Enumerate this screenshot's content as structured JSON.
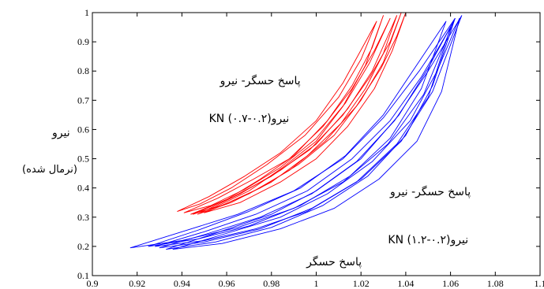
{
  "chart_data": {
    "type": "line",
    "title": "",
    "xlabel": "",
    "ylabel": "نیرو",
    "ylabel_sub": "(نرمال شده)",
    "xlim": [
      0.9,
      1.1
    ],
    "ylim": [
      0.1,
      1.0
    ],
    "x_ticks": [
      0.9,
      0.92,
      0.94,
      0.96,
      0.98,
      1.0,
      1.02,
      1.04,
      1.06,
      1.08,
      1.1
    ],
    "x_tick_labels": [
      "0.9",
      "0.92",
      "0.94",
      "0.96",
      "0.98",
      "1",
      "1.02",
      "1.04",
      "1.06",
      "1.08",
      "1.1"
    ],
    "y_ticks": [
      0.1,
      0.2,
      0.3,
      0.4,
      0.5,
      0.6,
      0.7,
      0.8,
      0.9,
      1.0
    ],
    "y_tick_labels": [
      "0.1",
      "0.2",
      "0.3",
      "0.4",
      "0.5",
      "0.6",
      "0.7",
      "0.8",
      "0.9",
      "1"
    ],
    "grid": false,
    "colors": {
      "red_series": "#ff0000",
      "blue_series": "#0000ff",
      "axis": "#000000"
    },
    "series": [
      {
        "color": "#ff0000",
        "loops": [
          {
            "lower": [
              [
                0.945,
                0.31
              ],
              [
                0.955,
                0.335
              ],
              [
                0.97,
                0.39
              ],
              [
                0.985,
                0.47
              ],
              [
                1.0,
                0.56
              ],
              [
                1.012,
                0.68
              ],
              [
                1.022,
                0.82
              ],
              [
                1.03,
                0.99
              ]
            ],
            "upper": [
              [
                0.945,
                0.31
              ],
              [
                0.96,
                0.36
              ],
              [
                0.975,
                0.43
              ],
              [
                0.99,
                0.51
              ],
              [
                1.005,
                0.63
              ],
              [
                1.016,
                0.75
              ],
              [
                1.025,
                0.88
              ],
              [
                1.03,
                0.99
              ]
            ]
          },
          {
            "lower": [
              [
                0.938,
                0.32
              ],
              [
                0.948,
                0.345
              ],
              [
                0.962,
                0.4
              ],
              [
                0.978,
                0.48
              ],
              [
                0.995,
                0.58
              ],
              [
                1.01,
                0.71
              ],
              [
                1.02,
                0.84
              ],
              [
                1.027,
                0.97
              ]
            ],
            "upper": [
              [
                0.938,
                0.32
              ],
              [
                0.952,
                0.37
              ],
              [
                0.968,
                0.44
              ],
              [
                0.984,
                0.52
              ],
              [
                1.0,
                0.63
              ],
              [
                1.012,
                0.76
              ],
              [
                1.022,
                0.9
              ],
              [
                1.027,
                0.97
              ]
            ]
          },
          {
            "lower": [
              [
                0.944,
                0.31
              ],
              [
                0.958,
                0.34
              ],
              [
                0.975,
                0.4
              ],
              [
                0.992,
                0.48
              ],
              [
                1.008,
                0.58
              ],
              [
                1.02,
                0.7
              ],
              [
                1.03,
                0.83
              ],
              [
                1.038,
                1.0
              ]
            ],
            "upper": [
              [
                0.944,
                0.31
              ],
              [
                0.963,
                0.37
              ],
              [
                0.98,
                0.44
              ],
              [
                0.997,
                0.53
              ],
              [
                1.012,
                0.65
              ],
              [
                1.024,
                0.78
              ],
              [
                1.033,
                0.9
              ],
              [
                1.038,
                1.0
              ]
            ]
          },
          {
            "lower": [
              [
                0.941,
                0.315
              ],
              [
                0.953,
                0.34
              ],
              [
                0.968,
                0.395
              ],
              [
                0.984,
                0.47
              ],
              [
                1.0,
                0.57
              ],
              [
                1.013,
                0.69
              ],
              [
                1.024,
                0.83
              ],
              [
                1.033,
                0.98
              ]
            ],
            "upper": [
              [
                0.941,
                0.315
              ],
              [
                0.956,
                0.365
              ],
              [
                0.972,
                0.43
              ],
              [
                0.988,
                0.5
              ],
              [
                1.003,
                0.61
              ],
              [
                1.016,
                0.74
              ],
              [
                1.026,
                0.87
              ],
              [
                1.033,
                0.98
              ]
            ]
          },
          {
            "lower": [
              [
                0.947,
                0.31
              ],
              [
                0.962,
                0.35
              ],
              [
                0.98,
                0.42
              ],
              [
                0.996,
                0.51
              ],
              [
                1.011,
                0.62
              ],
              [
                1.022,
                0.74
              ],
              [
                1.03,
                0.86
              ],
              [
                1.036,
                0.99
              ]
            ],
            "upper": [
              [
                0.947,
                0.31
              ],
              [
                0.966,
                0.38
              ],
              [
                0.984,
                0.46
              ],
              [
                1.0,
                0.55
              ],
              [
                1.014,
                0.67
              ],
              [
                1.025,
                0.8
              ],
              [
                1.032,
                0.92
              ],
              [
                1.036,
                0.99
              ]
            ]
          },
          {
            "lower": [
              [
                0.95,
                0.315
              ],
              [
                0.966,
                0.35
              ],
              [
                0.984,
                0.42
              ],
              [
                1.0,
                0.5
              ],
              [
                1.014,
                0.61
              ],
              [
                1.026,
                0.74
              ],
              [
                1.034,
                0.87
              ],
              [
                1.04,
                1.0
              ]
            ],
            "upper": [
              [
                0.95,
                0.315
              ],
              [
                0.97,
                0.38
              ],
              [
                0.988,
                0.46
              ],
              [
                1.004,
                0.56
              ],
              [
                1.018,
                0.68
              ],
              [
                1.029,
                0.81
              ],
              [
                1.036,
                0.92
              ],
              [
                1.04,
                1.0
              ]
            ]
          }
        ]
      },
      {
        "color": "#0000ff",
        "loops": [
          {
            "lower": [
              [
                0.917,
                0.195
              ],
              [
                0.94,
                0.22
              ],
              [
                0.965,
                0.265
              ],
              [
                0.99,
                0.33
              ],
              [
                1.012,
                0.42
              ],
              [
                1.032,
                0.55
              ],
              [
                1.048,
                0.72
              ],
              [
                1.062,
                0.98
              ]
            ],
            "upper": [
              [
                0.917,
                0.195
              ],
              [
                0.94,
                0.25
              ],
              [
                0.965,
                0.31
              ],
              [
                0.99,
                0.39
              ],
              [
                1.012,
                0.5
              ],
              [
                1.03,
                0.64
              ],
              [
                1.046,
                0.8
              ],
              [
                1.062,
                0.98
              ]
            ]
          },
          {
            "lower": [
              [
                0.93,
                0.195
              ],
              [
                0.95,
                0.215
              ],
              [
                0.975,
                0.26
              ],
              [
                0.998,
                0.33
              ],
              [
                1.02,
                0.43
              ],
              [
                1.038,
                0.56
              ],
              [
                1.052,
                0.73
              ],
              [
                1.065,
                0.99
              ]
            ],
            "upper": [
              [
                0.93,
                0.195
              ],
              [
                0.95,
                0.24
              ],
              [
                0.975,
                0.3
              ],
              [
                0.998,
                0.38
              ],
              [
                1.018,
                0.49
              ],
              [
                1.035,
                0.63
              ],
              [
                1.05,
                0.8
              ],
              [
                1.065,
                0.99
              ]
            ]
          },
          {
            "lower": [
              [
                0.933,
                0.19
              ],
              [
                0.955,
                0.215
              ],
              [
                0.98,
                0.265
              ],
              [
                1.003,
                0.34
              ],
              [
                1.023,
                0.44
              ],
              [
                1.04,
                0.58
              ],
              [
                1.052,
                0.75
              ],
              [
                1.062,
                0.98
              ]
            ],
            "upper": [
              [
                0.933,
                0.19
              ],
              [
                0.955,
                0.245
              ],
              [
                0.98,
                0.31
              ],
              [
                1.0,
                0.39
              ],
              [
                1.02,
                0.5
              ],
              [
                1.037,
                0.65
              ],
              [
                1.05,
                0.81
              ],
              [
                1.062,
                0.98
              ]
            ]
          },
          {
            "lower": [
              [
                0.925,
                0.2
              ],
              [
                0.947,
                0.225
              ],
              [
                0.97,
                0.27
              ],
              [
                0.993,
                0.34
              ],
              [
                1.015,
                0.44
              ],
              [
                1.033,
                0.57
              ],
              [
                1.047,
                0.74
              ],
              [
                1.058,
                0.97
              ]
            ],
            "upper": [
              [
                0.925,
                0.2
              ],
              [
                0.947,
                0.255
              ],
              [
                0.97,
                0.32
              ],
              [
                0.993,
                0.4
              ],
              [
                1.013,
                0.51
              ],
              [
                1.03,
                0.65
              ],
              [
                1.044,
                0.81
              ],
              [
                1.058,
                0.97
              ]
            ]
          },
          {
            "lower": [
              [
                0.936,
                0.19
              ],
              [
                0.958,
                0.21
              ],
              [
                0.984,
                0.26
              ],
              [
                1.008,
                0.33
              ],
              [
                1.028,
                0.43
              ],
              [
                1.045,
                0.56
              ],
              [
                1.056,
                0.73
              ],
              [
                1.064,
                0.98
              ]
            ],
            "upper": [
              [
                0.936,
                0.19
              ],
              [
                0.958,
                0.24
              ],
              [
                0.984,
                0.3
              ],
              [
                1.005,
                0.38
              ],
              [
                1.025,
                0.49
              ],
              [
                1.042,
                0.63
              ],
              [
                1.054,
                0.8
              ],
              [
                1.064,
                0.98
              ]
            ]
          },
          {
            "lower": [
              [
                0.928,
                0.2
              ],
              [
                0.95,
                0.22
              ],
              [
                0.973,
                0.26
              ],
              [
                0.996,
                0.32
              ],
              [
                1.018,
                0.42
              ],
              [
                1.036,
                0.55
              ],
              [
                1.05,
                0.71
              ],
              [
                1.06,
                0.95
              ]
            ],
            "upper": [
              [
                0.928,
                0.2
              ],
              [
                0.95,
                0.25
              ],
              [
                0.973,
                0.31
              ],
              [
                0.996,
                0.39
              ],
              [
                1.016,
                0.5
              ],
              [
                1.033,
                0.63
              ],
              [
                1.047,
                0.78
              ],
              [
                1.06,
                0.95
              ]
            ]
          }
        ]
      }
    ],
    "annotations": [
      {
        "text": "پاسخ حسگر- نیرو",
        "x": 0.975,
        "y": 0.765
      },
      {
        "text": "نیرو(۰.۲-۰.۷) KN",
        "x": 0.97,
        "y": 0.635
      },
      {
        "text": "پاسخ حسگر- نیرو",
        "x": 1.051,
        "y": 0.385
      },
      {
        "text": "نیرو(۰.۲-۱.۲) KN",
        "x": 1.05,
        "y": 0.22
      },
      {
        "text": "پاسخ حسگر",
        "x": 1.008,
        "y": 0.145
      }
    ]
  }
}
